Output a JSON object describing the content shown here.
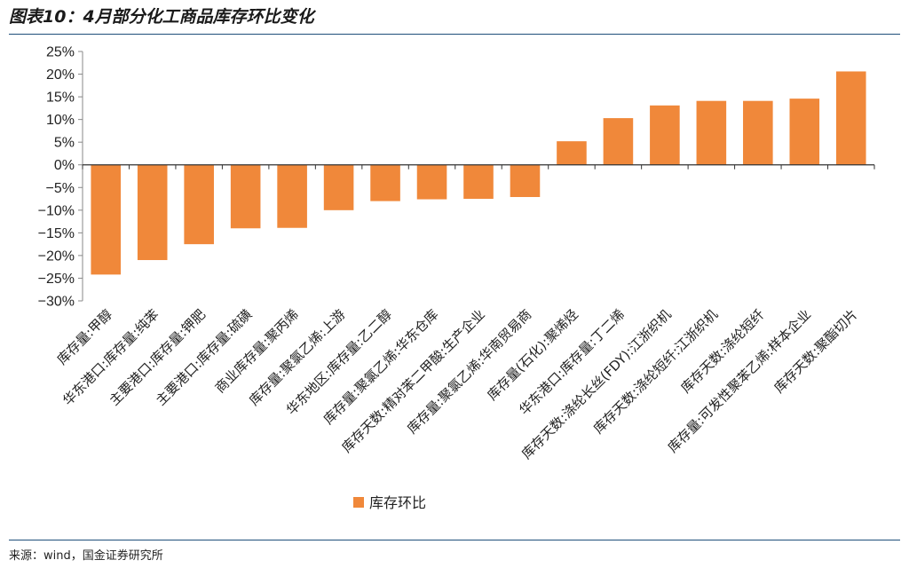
{
  "header": {
    "title": "图表10：4月部分化工商品库存环比变化"
  },
  "footer": {
    "source": "来源：wind，国金证券研究所"
  },
  "chart_data": {
    "type": "bar",
    "categories": [
      "库存量:甲醇",
      "华东港口:库存量:纯苯",
      "主要港口:库存量:钾肥",
      "主要港口:库存量:硫磺",
      "商业库存量:聚丙烯",
      "库存量:聚氯乙烯:上游",
      "华东地区:库存量:乙二醇",
      "库存量:聚氯乙烯:华东仓库",
      "库存天数:精对苯二甲酸:生产企业",
      "库存量:聚氯乙烯:华南贸易商",
      "库存量(石化):聚烯烃",
      "华东港口:库存量:丁二烯",
      "库存天数:涤纶长丝(FDY):江浙织机",
      "库存天数:涤纶短纤:江浙织机",
      "库存天数:涤纶短纤",
      "库存量:可发性聚苯乙烯:样本企业",
      "库存天数:聚酯切片"
    ],
    "series": [
      {
        "name": "库存环比",
        "values": [
          -24.2,
          -21.0,
          -17.5,
          -14.0,
          -13.9,
          -10.0,
          -8.0,
          -7.6,
          -7.5,
          -7.1,
          5.2,
          10.3,
          13.1,
          14.1,
          14.1,
          14.6,
          20.6
        ],
        "color": "#F0883A"
      }
    ],
    "ylim": [
      -30,
      25
    ],
    "yticks": [
      -30,
      -25,
      -20,
      -15,
      -10,
      -5,
      0,
      5,
      10,
      15,
      20,
      25
    ],
    "ytick_format": "percent",
    "grid": false,
    "legend": {
      "position": "bottom-center"
    },
    "xlabel": "",
    "ylabel": ""
  }
}
